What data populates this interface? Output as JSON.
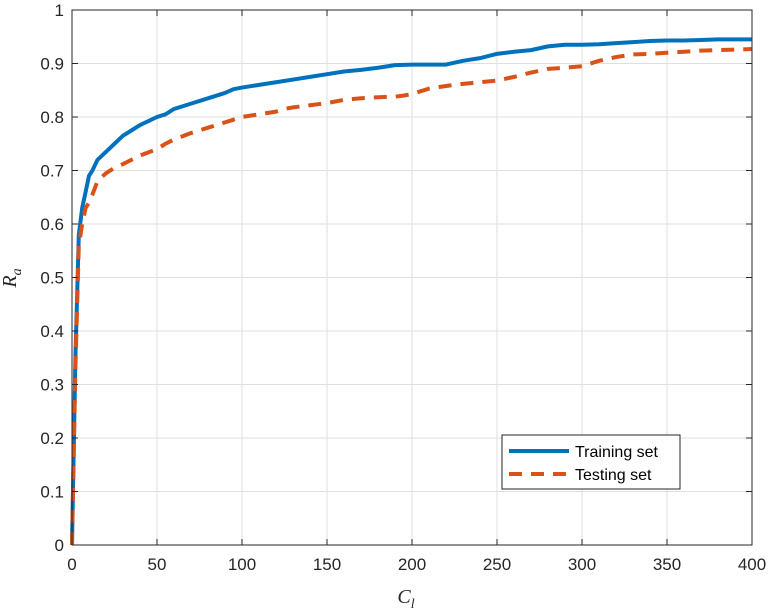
{
  "colors": {
    "training": "#0072BD",
    "testing": "#D95319",
    "axis": "#262626",
    "grid": "#DFDFDF"
  },
  "chart_data": {
    "type": "line",
    "title": "",
    "xlabel": {
      "base": "C",
      "sub": "l"
    },
    "ylabel": {
      "base": "R",
      "sub": "a"
    },
    "xlim": [
      0,
      400
    ],
    "ylim": [
      0,
      1
    ],
    "xticks": [
      0,
      50,
      100,
      150,
      200,
      250,
      300,
      350,
      400
    ],
    "yticks": [
      0,
      0.1,
      0.2,
      0.3,
      0.4,
      0.5,
      0.6,
      0.7,
      0.8,
      0.9,
      1
    ],
    "ytick_labels": [
      "0",
      "0.1",
      "0.2",
      "0.3",
      "0.4",
      "0.5",
      "0.6",
      "0.7",
      "0.8",
      "0.9",
      "1"
    ],
    "grid": true,
    "legend_position": "bottom-right",
    "series": [
      {
        "name": "Training set",
        "style": "solid",
        "x": [
          0,
          2,
          4,
          6,
          8,
          10,
          12,
          15,
          20,
          25,
          30,
          35,
          40,
          50,
          55,
          60,
          70,
          80,
          90,
          95,
          100,
          110,
          120,
          130,
          140,
          150,
          160,
          170,
          180,
          190,
          200,
          210,
          220,
          230,
          240,
          250,
          260,
          270,
          280,
          290,
          300,
          310,
          320,
          330,
          340,
          350,
          360,
          370,
          380,
          390,
          400
        ],
        "y": [
          0,
          0.35,
          0.58,
          0.63,
          0.66,
          0.69,
          0.7,
          0.72,
          0.735,
          0.75,
          0.765,
          0.775,
          0.785,
          0.8,
          0.805,
          0.815,
          0.825,
          0.835,
          0.845,
          0.852,
          0.855,
          0.86,
          0.865,
          0.87,
          0.875,
          0.88,
          0.885,
          0.888,
          0.892,
          0.897,
          0.898,
          0.898,
          0.898,
          0.905,
          0.91,
          0.918,
          0.922,
          0.925,
          0.932,
          0.935,
          0.935,
          0.936,
          0.938,
          0.94,
          0.942,
          0.943,
          0.943,
          0.944,
          0.945,
          0.945,
          0.945
        ]
      },
      {
        "name": "Testing set",
        "style": "dashed",
        "x": [
          0,
          2,
          4,
          6,
          8,
          10,
          12,
          15,
          20,
          25,
          30,
          35,
          40,
          50,
          55,
          60,
          70,
          80,
          90,
          95,
          100,
          110,
          120,
          125,
          130,
          140,
          150,
          160,
          170,
          180,
          190,
          195,
          200,
          210,
          220,
          230,
          240,
          250,
          260,
          270,
          280,
          290,
          300,
          310,
          320,
          330,
          340,
          350,
          360,
          370,
          380,
          390,
          400
        ],
        "y": [
          0,
          0.33,
          0.56,
          0.6,
          0.63,
          0.64,
          0.655,
          0.68,
          0.695,
          0.705,
          0.712,
          0.72,
          0.728,
          0.74,
          0.75,
          0.758,
          0.77,
          0.78,
          0.79,
          0.795,
          0.8,
          0.805,
          0.81,
          0.815,
          0.818,
          0.822,
          0.826,
          0.832,
          0.835,
          0.837,
          0.838,
          0.84,
          0.843,
          0.853,
          0.858,
          0.862,
          0.865,
          0.868,
          0.875,
          0.883,
          0.89,
          0.892,
          0.895,
          0.905,
          0.912,
          0.917,
          0.918,
          0.92,
          0.922,
          0.924,
          0.925,
          0.926,
          0.927
        ]
      }
    ]
  }
}
